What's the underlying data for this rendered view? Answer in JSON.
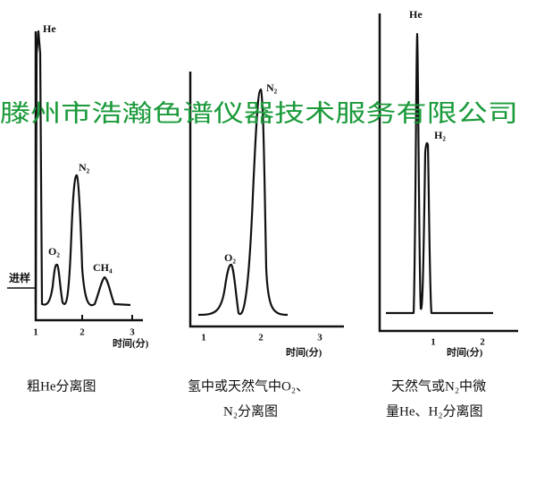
{
  "watermark": "滕州市浩瀚色谱仪器技术服务有限公司",
  "panels": [
    {
      "peaks": [
        "He",
        "O₂",
        "N₂",
        "CH₄"
      ],
      "injection": "进样",
      "ticks": [
        "1",
        "2",
        "3"
      ],
      "axis_label": "时间(分)",
      "caption": [
        "粗He分离图"
      ]
    },
    {
      "peaks": [
        "O₂",
        "N₂"
      ],
      "ticks": [
        "1",
        "2",
        "3"
      ],
      "axis_label": "时间(分)",
      "caption": [
        "氢中或天然气中O₂、",
        "N₂分离图"
      ]
    },
    {
      "peaks": [
        "He",
        "H₂"
      ],
      "ticks": [
        "1",
        "2"
      ],
      "axis_label": "时间(分)",
      "caption": [
        "天然气或N₂中微",
        "量He、H₂分离图"
      ]
    }
  ]
}
